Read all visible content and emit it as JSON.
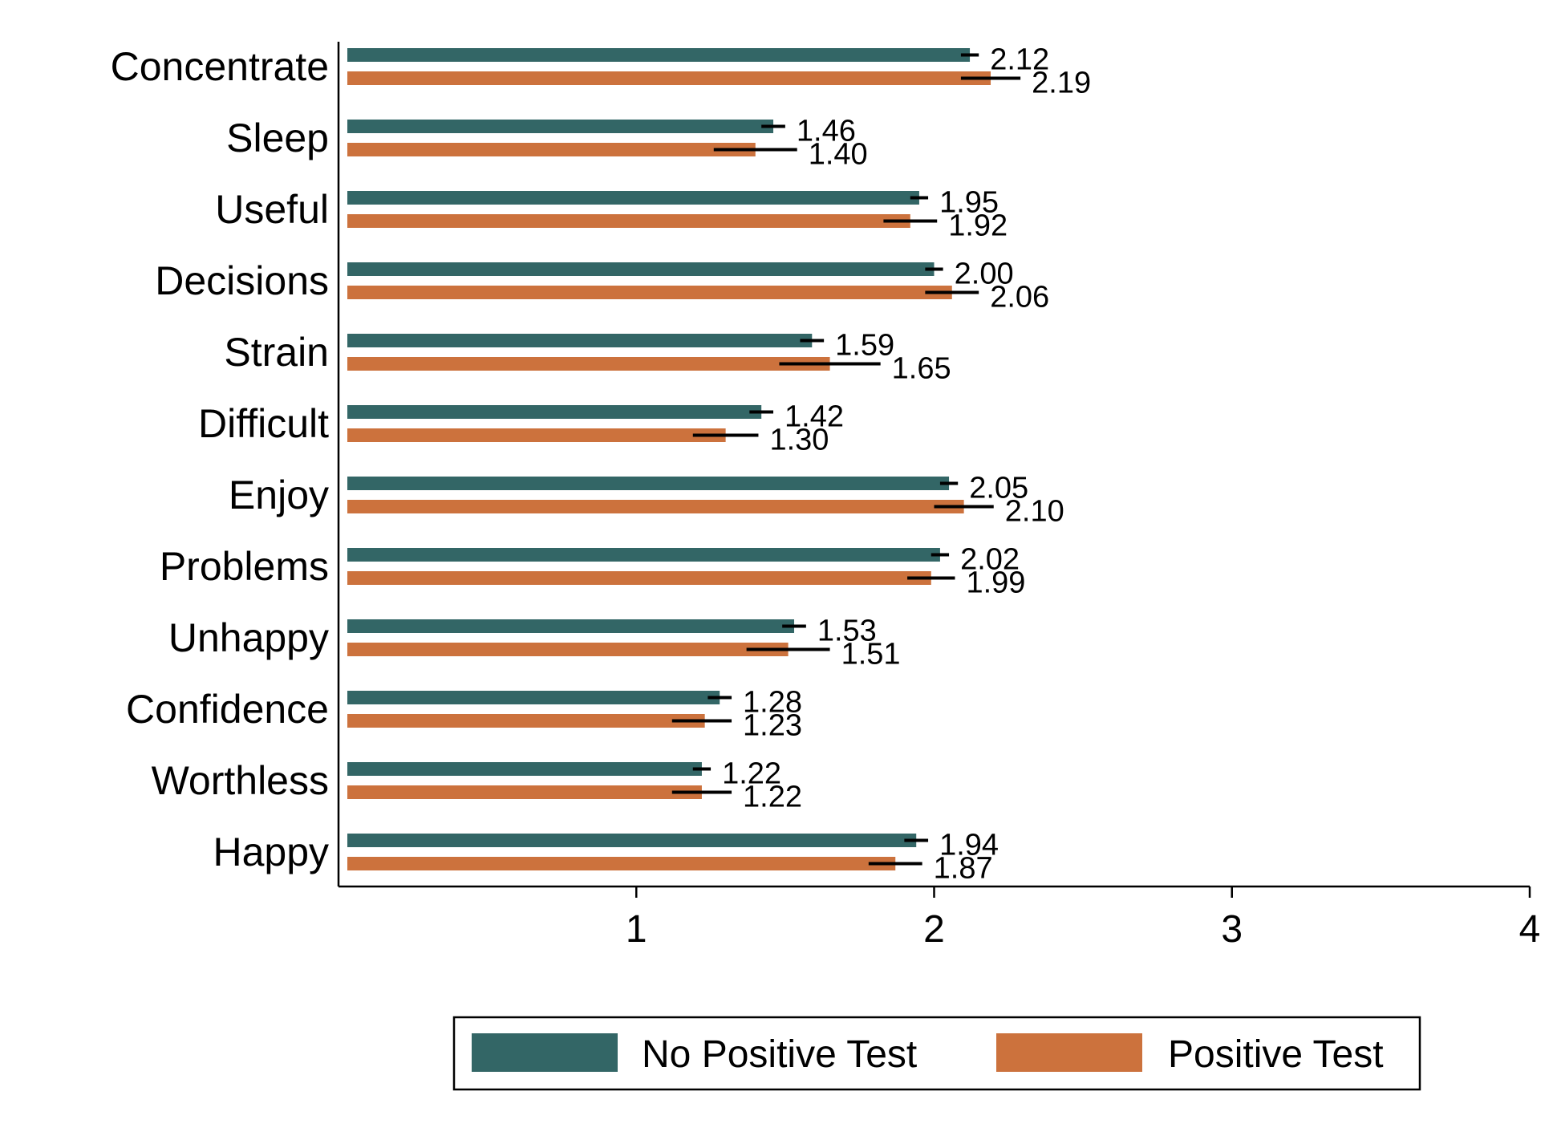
{
  "chart_data": {
    "type": "bar",
    "orientation": "horizontal",
    "categories": [
      "Concentrate",
      "Sleep",
      "Useful",
      "Decisions",
      "Strain",
      "Difficult",
      "Enjoy",
      "Problems",
      "Unhappy",
      "Confidence",
      "Worthless",
      "Happy"
    ],
    "series": [
      {
        "name": "No Positive Test",
        "color": "#336666",
        "values": [
          2.12,
          1.46,
          1.95,
          2.0,
          1.59,
          1.42,
          2.05,
          2.02,
          1.53,
          1.28,
          1.22,
          1.94
        ],
        "labels": [
          "2.12",
          "1.46",
          "1.95",
          "2.00",
          "1.59",
          "1.42",
          "2.05",
          "2.02",
          "1.53",
          "1.28",
          "1.22",
          "1.94"
        ],
        "ci_low": [
          2.09,
          1.42,
          1.92,
          1.97,
          1.55,
          1.38,
          2.02,
          1.99,
          1.49,
          1.24,
          1.19,
          1.9
        ],
        "ci_high": [
          2.15,
          1.5,
          1.98,
          2.03,
          1.63,
          1.46,
          2.08,
          2.05,
          1.57,
          1.32,
          1.25,
          1.98
        ]
      },
      {
        "name": "Positive Test",
        "color": "#cc723d",
        "values": [
          2.19,
          1.4,
          1.92,
          2.06,
          1.65,
          1.3,
          2.1,
          1.99,
          1.51,
          1.23,
          1.22,
          1.87
        ],
        "labels": [
          "2.19",
          "1.40",
          "1.92",
          "2.06",
          "1.65",
          "1.30",
          "2.10",
          "1.99",
          "1.51",
          "1.23",
          "1.22",
          "1.87"
        ],
        "ci_low": [
          2.09,
          1.26,
          1.83,
          1.97,
          1.48,
          1.19,
          2.0,
          1.91,
          1.37,
          1.12,
          1.12,
          1.78
        ],
        "ci_high": [
          2.29,
          1.54,
          2.01,
          2.15,
          1.82,
          1.41,
          2.2,
          2.07,
          1.65,
          1.32,
          1.32,
          1.96
        ]
      }
    ],
    "xaxis": {
      "ticks": [
        1,
        2,
        3,
        4
      ],
      "tick_labels": [
        "1",
        "2",
        "3",
        "4"
      ],
      "range": [
        0,
        4
      ]
    },
    "xlabel": "",
    "ylabel": "",
    "title": "",
    "grid": false,
    "legend": {
      "position": "bottom",
      "entries": [
        "No Positive Test",
        "Positive Test"
      ]
    }
  }
}
